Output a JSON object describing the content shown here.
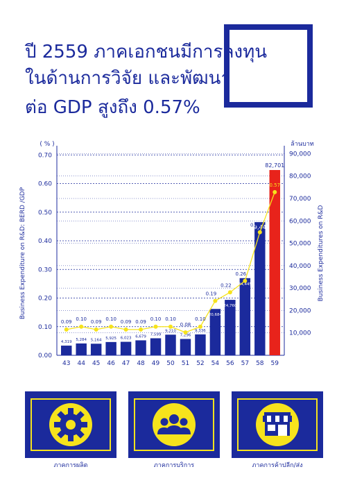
{
  "title": {
    "line1": "ปี 2559 ภาคเอกชนมีการลงทุน",
    "line2": "ในด้านการวิจัย และพัฒนา",
    "line3": "ต่อ GDP สูงถึง 0.57%"
  },
  "chart_data": {
    "type": "bar",
    "categories": [
      "43",
      "44",
      "45",
      "46",
      "47",
      "48",
      "49",
      "50",
      "51",
      "52",
      "54",
      "56",
      "57",
      "58",
      "59"
    ],
    "series": [
      {
        "name": "Business Expenditures on R&D",
        "axis": "right",
        "values": [
          4319,
          5284,
          5164,
          5925,
          6023,
          6679,
          7599,
          9210,
          7296,
          9336,
          20684,
          24760,
          34445,
          59443,
          82701
        ],
        "labels": [
          "4,319",
          "5,284",
          "5,164",
          "5,925",
          "6,023",
          "6,679",
          "7,599",
          "9,210",
          "7,296",
          "9,336",
          "20,684",
          "24,760",
          "34,445",
          "59,443",
          "82,701"
        ]
      },
      {
        "name": "Business Expenditure on R&D: BERD / GDP",
        "axis": "left",
        "values": [
          0.09,
          0.1,
          0.09,
          0.1,
          0.09,
          0.09,
          0.1,
          0.1,
          0.08,
          0.1,
          0.19,
          0.22,
          0.26,
          0.43,
          0.57
        ],
        "labels": [
          "0.09",
          "0.10",
          "0.09",
          "0.10",
          "0.09",
          "0.09",
          "0.10",
          "0.10",
          "0.08",
          "0.10",
          "0.19",
          "0.22",
          "0.26",
          "0.43",
          "0.57"
        ]
      }
    ],
    "left_axis": {
      "unit": "( % )",
      "label": "Business Expenditure on R&D: BERD /GDP",
      "ticks": [
        "0.00",
        "0.10",
        "0.20",
        "0.30",
        "0.40",
        "0.50",
        "0.60",
        "0.70"
      ],
      "ylim": [
        0,
        0.72
      ]
    },
    "right_axis": {
      "unit": "ล้านบาท",
      "label": "Business Expenditures on R&D",
      "ticks": [
        "10,000",
        "20,000",
        "30,000",
        "40,000",
        "50,000",
        "60,000",
        "70,000",
        "80,000",
        "90,000"
      ],
      "ylim": [
        0,
        92000
      ]
    },
    "highlight": {
      "category": "59",
      "color": "#e8231b"
    },
    "colors": {
      "bar": "#1b2a9c",
      "line": "#f6e31c",
      "axis": "#1b2a9c"
    },
    "grid": "dashed"
  },
  "sectors": [
    {
      "label": "ภาคการผลิต",
      "icon": "gear-icon"
    },
    {
      "label": "ภาคการบริการ",
      "icon": "people-icon"
    },
    {
      "label": "ภาคการค้าปลีก/ส่ง",
      "icon": "shop-icon"
    }
  ]
}
